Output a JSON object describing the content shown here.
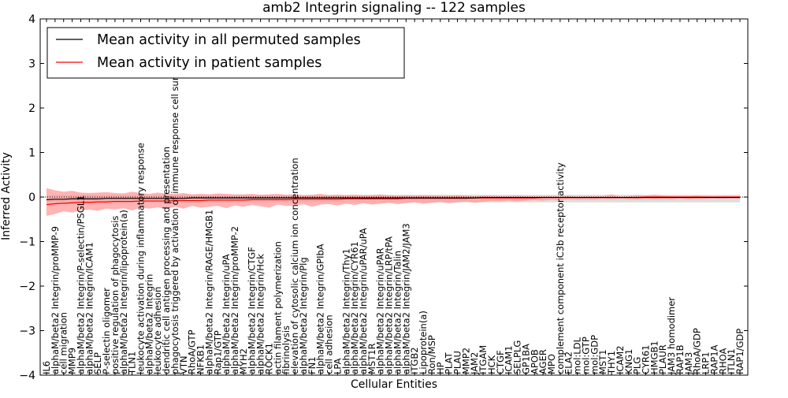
{
  "chart_data": {
    "type": "line",
    "title": "amb2 Integrin signaling -- 122 samples",
    "xlabel": "Cellular Entities",
    "ylabel": "Inferred Activity",
    "ylim": [
      -4,
      4
    ],
    "yticks": [
      -4,
      -3,
      -2,
      -1,
      0,
      1,
      2,
      3,
      4
    ],
    "grid": false,
    "legend_position": "top-left",
    "colors": {
      "permuted_line": "#000000",
      "patient_line": "#ff0000",
      "patient_band": "#ff9a9a",
      "permuted_band": "#c8c8c8",
      "zero_line": "#000000"
    },
    "categories": [
      "IL6",
      "alphaM/beta2 Integrin/proMMP-9",
      "cell migration",
      "MMP9",
      "alphaM/beta2 Integrin/P-selectin/PSGL1",
      "alphaM/beta2 Integrin/ICAM1",
      "SELP",
      "P-selectin oligomer",
      "positive regulation of phagocytosis",
      "alphaM/beta2 Integrin/lipoprotein(a)",
      "TLN1",
      "leukocyte activation during inflammatory response",
      "alphaM/beta2 Integrin",
      "leukocyte adhesion",
      "dendritic cell antigen processing and presentation",
      "phagocytosis triggered by activation of immune response cell surface",
      "VTN",
      "RhoA/GTP",
      "NFKB1",
      "alphaM/beta2 Integrin/RAGE/HMGB1",
      "Rap1/GTP",
      "alphaM/beta2 Integrin/uPA",
      "alphaM/beta2 Integrin/proMMP-2",
      "MYH2",
      "alphaM/beta2 Integrin/CTGF",
      "alphaM/beta2 Integrin/Hck",
      "ROCK1",
      "actin filament polymerization",
      "fibrinolysis",
      "elevation of cytosolic calcium ion concentration",
      "alphaM/beta2 Integrin/Plg",
      "FN1",
      "alphaM/beta2 Integrin/GPIbA",
      "cell adhesion",
      "LPA",
      "alphaM/beta2 Integrin/Thy1",
      "alphaM/beta2 Integrin/CYR61",
      "alphaM/beta2 Integrin/uPAR/uPA",
      "MST1R",
      "alphaM/beta2 Integrin/uPAR",
      "alphaM/beta2 Integrin/LRP/tPA",
      "alphaM/beta2 Integrin/Talin",
      "alphaM/beta2 Integrin/JAM2/JAM3",
      "ITGB2",
      "Lipoprotein(a)",
      "Ron/MSP",
      "HP",
      "PLAT",
      "PLAU",
      "MMP2",
      "JAM2",
      "ITGAM",
      "HCK",
      "CTGF",
      "ICAM1",
      "SELPLG",
      "GP1BA",
      "APOB",
      "AGER",
      "MPO",
      "complement component iC3b receptor activity",
      "ELA2",
      "mol:LDL",
      "mol:GTP",
      "mol:GDP",
      "MST1",
      "THY1",
      "ICAM2",
      "KNG1",
      "PLG",
      "CYR61",
      "HMGB1",
      "PLAUR",
      "JAM3 homodimer",
      "RAP1B",
      "JAM3",
      "RhoA/GDP",
      "LRP1",
      "RAP1A",
      "RHOA",
      "ITLN1",
      "RAP1/GDP"
    ],
    "series": [
      {
        "name": "Mean activity in all permuted samples",
        "values": [
          -0.06,
          -0.05,
          -0.05,
          -0.04,
          -0.04,
          -0.04,
          -0.04,
          -0.03,
          -0.03,
          -0.03,
          -0.03,
          -0.03,
          -0.03,
          -0.03,
          -0.03,
          -0.03,
          -0.03,
          -0.02,
          -0.02,
          -0.02,
          -0.02,
          -0.02,
          -0.02,
          -0.02,
          -0.02,
          -0.02,
          -0.02,
          -0.02,
          -0.02,
          -0.02,
          -0.02,
          -0.02,
          -0.02,
          -0.02,
          -0.02,
          -0.02,
          -0.02,
          -0.02,
          -0.02,
          -0.02,
          -0.02,
          -0.02,
          -0.02,
          -0.02,
          -0.02,
          -0.02,
          -0.02,
          -0.02,
          -0.02,
          -0.02,
          -0.02,
          -0.01,
          -0.01,
          -0.01,
          -0.01,
          -0.01,
          -0.01,
          -0.01,
          -0.01,
          -0.01,
          -0.01,
          -0.01,
          -0.01,
          -0.01,
          -0.01,
          -0.01,
          -0.01,
          -0.01,
          -0.01,
          -0.01,
          -0.01,
          -0.01,
          -0.01,
          -0.01,
          -0.01,
          -0.01,
          -0.01,
          -0.01,
          -0.01,
          -0.01,
          -0.01,
          -0.01
        ]
      },
      {
        "name": "Mean activity in patient samples",
        "values": [
          -0.17,
          -0.15,
          -0.14,
          -0.13,
          -0.12,
          -0.12,
          -0.11,
          -0.11,
          -0.1,
          -0.1,
          -0.1,
          -0.09,
          -0.09,
          -0.09,
          -0.09,
          -0.08,
          -0.08,
          -0.08,
          -0.08,
          -0.07,
          -0.07,
          -0.07,
          -0.07,
          -0.07,
          -0.06,
          -0.06,
          -0.06,
          -0.06,
          -0.06,
          -0.05,
          -0.05,
          -0.05,
          -0.05,
          -0.05,
          -0.05,
          -0.04,
          -0.04,
          -0.04,
          -0.04,
          -0.04,
          -0.04,
          -0.04,
          -0.03,
          -0.03,
          -0.03,
          -0.03,
          -0.03,
          -0.03,
          -0.03,
          -0.03,
          -0.02,
          -0.02,
          -0.02,
          -0.02,
          -0.02,
          -0.02,
          -0.02,
          -0.02,
          -0.01,
          -0.01,
          -0.01,
          -0.01,
          -0.01,
          -0.01,
          -0.01,
          -0.01,
          -0.01,
          -0.01,
          -0.01,
          -0.01,
          0,
          0,
          0,
          0,
          0,
          0,
          0,
          0,
          0,
          0,
          0,
          0
        ]
      }
    ],
    "patient_band": {
      "upper": [
        0.2,
        0.15,
        0.12,
        0.14,
        0.1,
        0.09,
        0.1,
        0.11,
        0.09,
        0.08,
        0.12,
        0.09,
        0.07,
        0.1,
        0.08,
        0.07,
        0.09,
        0.06,
        0.07,
        0.06,
        0.08,
        0.07,
        0.06,
        0.06,
        0.07,
        0.05,
        0.06,
        0.07,
        0.05,
        0.06,
        0.04,
        0.05,
        0.07,
        0.04,
        0.05,
        0.04,
        0.05,
        0.04,
        0.04,
        0.06,
        0.04,
        0.03,
        0.04,
        0.03,
        0.04,
        0.03,
        0.03,
        0.03,
        0.04,
        0.03,
        0.02,
        0.03,
        0.03,
        0.02,
        0.02,
        0.03,
        0.02,
        0.02,
        0.02,
        0.02,
        0.02,
        0.03,
        0.01,
        0.02,
        0.02,
        0.02,
        0.06,
        0.01,
        0.02,
        0.04,
        0.03,
        0.05,
        0.03,
        0.02,
        0.02,
        0.02,
        0.03,
        0.02,
        0.01,
        0.02,
        0.02,
        0.02
      ],
      "lower": [
        -0.42,
        -0.38,
        -0.32,
        -0.35,
        -0.3,
        -0.28,
        -0.31,
        -0.26,
        -0.28,
        -0.25,
        -0.3,
        -0.24,
        -0.26,
        -0.23,
        -0.27,
        -0.22,
        -0.26,
        -0.2,
        -0.24,
        -0.22,
        -0.2,
        -0.25,
        -0.19,
        -0.22,
        -0.18,
        -0.21,
        -0.24,
        -0.17,
        -0.2,
        -0.19,
        -0.16,
        -0.22,
        -0.17,
        -0.16,
        -0.19,
        -0.15,
        -0.18,
        -0.14,
        -0.17,
        -0.15,
        -0.13,
        -0.16,
        -0.14,
        -0.12,
        -0.15,
        -0.13,
        -0.11,
        -0.14,
        -0.12,
        -0.1,
        -0.13,
        -0.11,
        -0.09,
        -0.1,
        -0.08,
        -0.1,
        -0.08,
        -0.07,
        -0.08,
        -0.06,
        -0.07,
        -0.05,
        -0.06,
        -0.05,
        -0.06,
        -0.04,
        -0.05,
        -0.04,
        -0.05,
        -0.06,
        -0.04,
        -0.05,
        -0.04,
        -0.05,
        -0.03,
        -0.05,
        -0.04,
        -0.04,
        -0.03,
        -0.04,
        -0.03,
        -0.04
      ]
    },
    "permuted_band": {
      "upper": [
        0.05,
        0.05,
        0.05,
        0.05,
        0.05,
        0.05,
        0.05,
        0.05,
        0.05,
        0.05,
        0.05,
        0.05,
        0.05,
        0.05,
        0.05,
        0.05,
        0.05,
        0.05,
        0.05,
        0.05,
        0.05,
        0.05,
        0.05,
        0.05,
        0.05,
        0.05,
        0.05,
        0.05,
        0.05,
        0.05,
        0.05,
        0.05,
        0.05,
        0.05,
        0.05,
        0.05,
        0.05,
        0.05,
        0.05,
        0.05,
        0.05,
        0.05,
        0.05,
        0.05,
        0.05,
        0.05,
        0.05,
        0.05,
        0.05,
        0.05,
        0.05,
        0.05,
        0.05,
        0.05,
        0.05,
        0.05,
        0.05,
        0.05,
        0.05,
        0.05,
        0.05,
        0.05,
        0.05,
        0.05,
        0.05,
        0.05,
        0.05,
        0.05,
        0.05,
        0.05,
        0.05,
        0.05,
        0.05,
        0.05,
        0.05,
        0.05,
        0.05,
        0.05,
        0.05,
        0.05,
        0.05,
        0.05
      ],
      "lower": [
        -0.12,
        -0.12,
        -0.12,
        -0.12,
        -0.12,
        -0.12,
        -0.12,
        -0.12,
        -0.12,
        -0.12,
        -0.12,
        -0.12,
        -0.12,
        -0.12,
        -0.12,
        -0.12,
        -0.12,
        -0.12,
        -0.12,
        -0.12,
        -0.12,
        -0.12,
        -0.12,
        -0.12,
        -0.12,
        -0.12,
        -0.12,
        -0.12,
        -0.12,
        -0.12,
        -0.12,
        -0.12,
        -0.12,
        -0.12,
        -0.12,
        -0.12,
        -0.12,
        -0.12,
        -0.12,
        -0.12,
        -0.12,
        -0.12,
        -0.12,
        -0.12,
        -0.12,
        -0.12,
        -0.12,
        -0.12,
        -0.12,
        -0.12,
        -0.12,
        -0.12,
        -0.12,
        -0.12,
        -0.12,
        -0.12,
        -0.12,
        -0.12,
        -0.12,
        -0.12,
        -0.12,
        -0.12,
        -0.12,
        -0.12,
        -0.12,
        -0.12,
        -0.12,
        -0.12,
        -0.12,
        -0.12,
        -0.12,
        -0.12,
        -0.12,
        -0.12,
        -0.12,
        -0.12,
        -0.12,
        -0.12,
        -0.12,
        -0.12,
        -0.12,
        -0.12
      ]
    }
  }
}
